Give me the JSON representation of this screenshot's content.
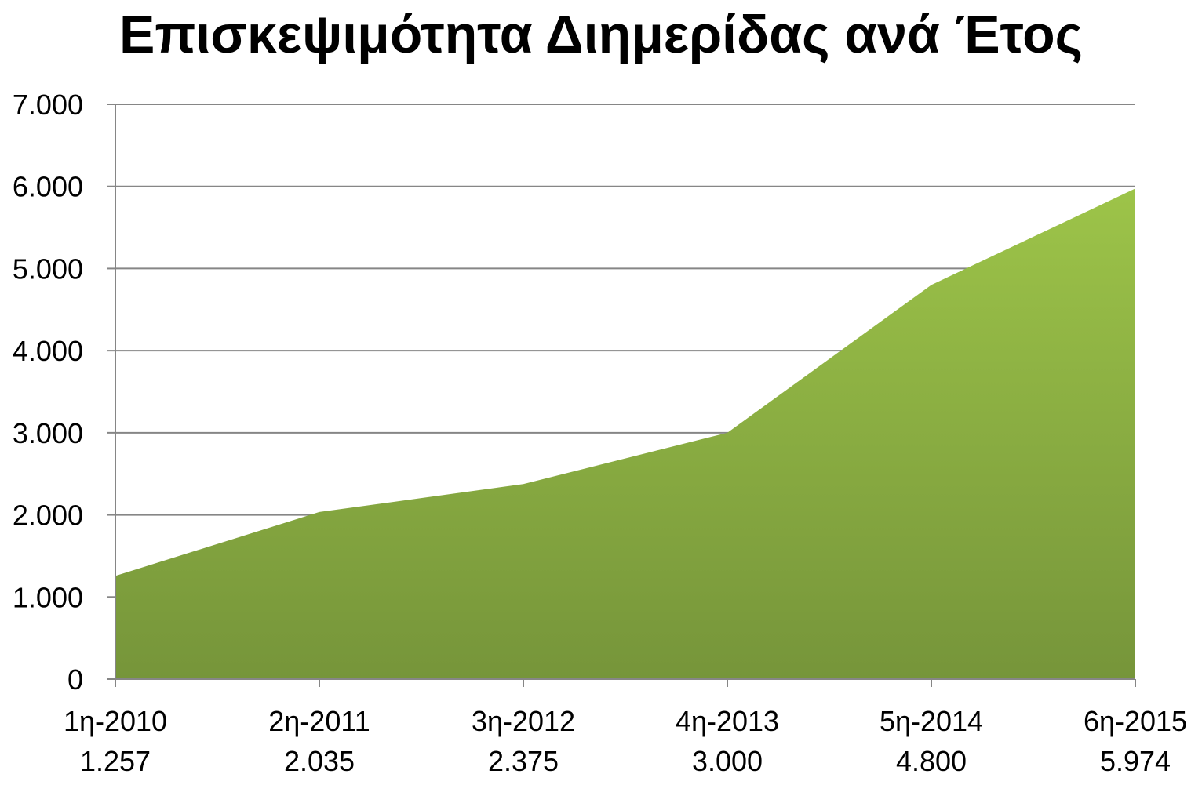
{
  "chart_data": {
    "type": "area",
    "title": "Επισκεψιμότητα Διημερίδας ανά Έτος",
    "categories": [
      "1η-2010",
      "2η-2011",
      "3η-2012",
      "4η-2013",
      "5η-2014",
      "6η-2015"
    ],
    "category_value_labels": [
      "1.257",
      "2.035",
      "2.375",
      "3.000",
      "4.800",
      "5.974"
    ],
    "values": [
      1257,
      2035,
      2375,
      3000,
      4800,
      5974
    ],
    "y_ticks": [
      "0",
      "1.000",
      "2.000",
      "3.000",
      "4.000",
      "5.000",
      "6.000",
      "7.000"
    ],
    "ylim": [
      0,
      7000
    ],
    "grid": true,
    "legend": "none",
    "xlabel": "",
    "ylabel": ""
  },
  "colors": {
    "area_top": "#9dc449",
    "area_bottom": "#76953a",
    "grid": "#868686",
    "axis": "#868686"
  }
}
